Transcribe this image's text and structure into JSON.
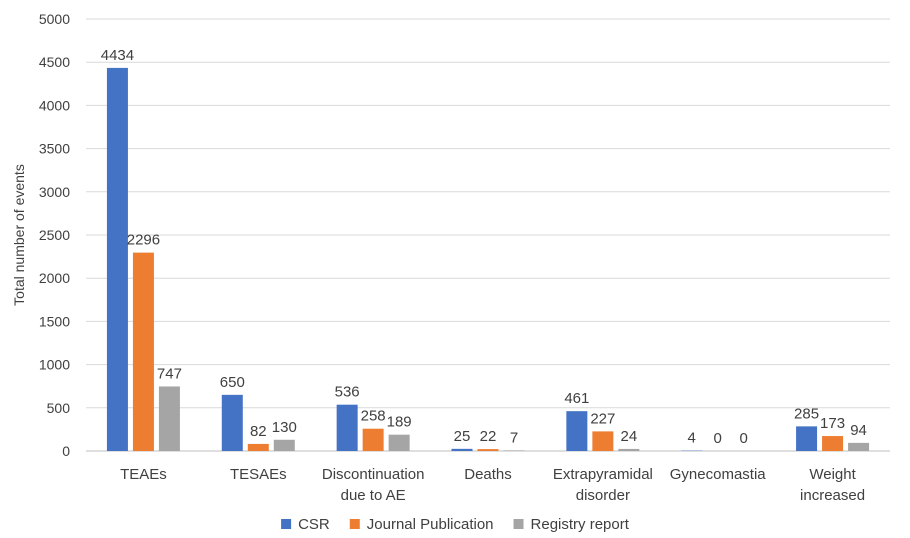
{
  "chart_data": {
    "type": "bar",
    "title": "",
    "xlabel": "",
    "ylabel": "Total number of events",
    "ylim": [
      0,
      5000
    ],
    "y_ticks": [
      0,
      500,
      1000,
      1500,
      2000,
      2500,
      3000,
      3500,
      4000,
      4500,
      5000
    ],
    "grid": true,
    "legend_position": "bottom",
    "categories": [
      [
        "TEAEs"
      ],
      [
        "TESAEs"
      ],
      [
        "Discontinuation",
        "due to AE"
      ],
      [
        "Deaths"
      ],
      [
        "Extrapyramidal",
        "disorder"
      ],
      [
        "Gynecomastia"
      ],
      [
        "Weight",
        "increased"
      ]
    ],
    "series": [
      {
        "name": "CSR",
        "color": "#4472C4",
        "values": [
          4434,
          650,
          536,
          25,
          461,
          4,
          285
        ]
      },
      {
        "name": "Journal Publication",
        "color": "#ED7D31",
        "values": [
          2296,
          82,
          258,
          22,
          227,
          0,
          173
        ]
      },
      {
        "name": "Registry report",
        "color": "#A5A5A5",
        "values": [
          747,
          130,
          189,
          7,
          24,
          0,
          94
        ]
      }
    ]
  }
}
